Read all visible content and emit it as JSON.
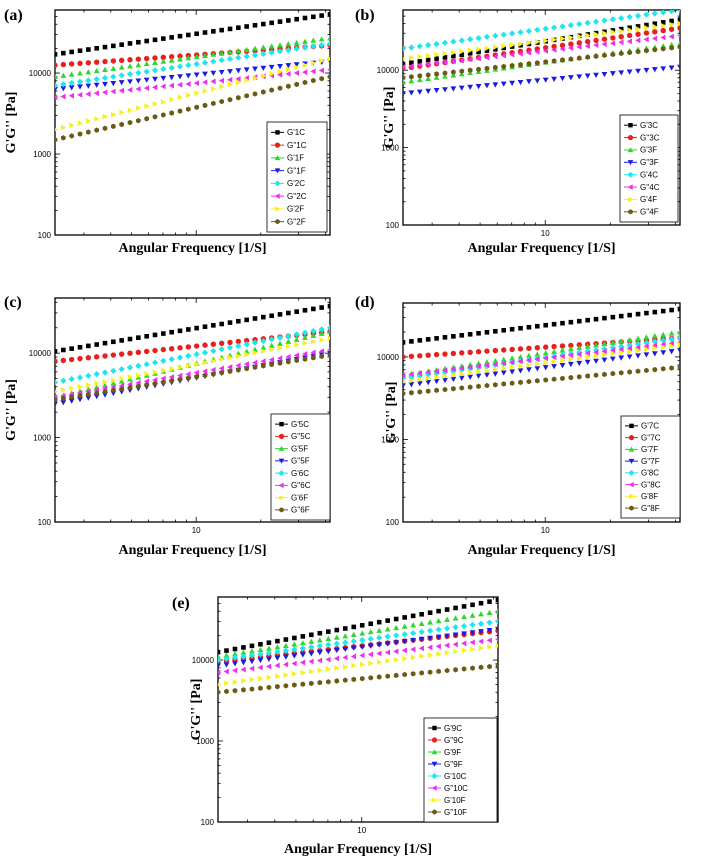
{
  "figure": {
    "colors": {
      "black": "#000000",
      "red": "#e8201c",
      "green": "#2ed62e",
      "blue": "#1a1ae0",
      "cyan": "#1ee6ee",
      "magenta": "#f02cf0",
      "yellow": "#f8f018",
      "olive": "#6a5a14"
    },
    "markers": [
      "square",
      "circle",
      "triangle-up",
      "triangle-down",
      "diamond",
      "triangle-left",
      "triangle-right",
      "hexagon"
    ]
  },
  "chart_data": [
    {
      "type": "scatter",
      "panel": "(a)",
      "xlabel": "Angular Frequency [1/S]",
      "ylabel": "G'G'' [Pa]",
      "xscale": "log",
      "yscale": "log",
      "xlim": [
        2.2,
        42
      ],
      "ylim": [
        100,
        60000
      ],
      "x_ticks": [],
      "y_ticks": [
        "100",
        "1000",
        "10000"
      ],
      "y_tick_values": [
        100,
        1000,
        10000
      ],
      "legend_position": "bottom-right",
      "series": [
        {
          "name": "G'1C",
          "color": "black",
          "marker": "square",
          "y_start": 17000,
          "y_end": 53000
        },
        {
          "name": "G''1C",
          "color": "red",
          "marker": "circle",
          "y_start": 12500,
          "y_end": 22000
        },
        {
          "name": "G'1F",
          "color": "green",
          "marker": "triangle-up",
          "y_start": 9000,
          "y_end": 27000
        },
        {
          "name": "G''1F",
          "color": "blue",
          "marker": "triangle-down",
          "y_start": 6300,
          "y_end": 14000
        },
        {
          "name": "G'2C",
          "color": "cyan",
          "marker": "diamond",
          "y_start": 7000,
          "y_end": 23000
        },
        {
          "name": "G''2C",
          "color": "magenta",
          "marker": "triangle-left",
          "y_start": 5000,
          "y_end": 11000
        },
        {
          "name": "G'2F",
          "color": "yellow",
          "marker": "triangle-right",
          "y_start": 2000,
          "y_end": 15000
        },
        {
          "name": "G''2F",
          "color": "olive",
          "marker": "hexagon",
          "y_start": 1500,
          "y_end": 9000
        }
      ]
    },
    {
      "type": "scatter",
      "panel": "(b)",
      "xlabel": "Angular Frequency [1/S]",
      "ylabel": "G'G'' [Pa]",
      "xscale": "log",
      "yscale": "log",
      "xlim": [
        2.2,
        42
      ],
      "ylim": [
        100,
        60000
      ],
      "x_ticks": [
        "10"
      ],
      "x_tick_values": [
        10
      ],
      "y_ticks": [
        "100",
        "1000",
        "10000"
      ],
      "y_tick_values": [
        100,
        1000,
        10000
      ],
      "legend_position": "bottom-right",
      "series": [
        {
          "name": "G'3C",
          "color": "black",
          "marker": "square",
          "y_start": 12000,
          "y_end": 45000
        },
        {
          "name": "G''3C",
          "color": "red",
          "marker": "circle",
          "y_start": 10500,
          "y_end": 35000
        },
        {
          "name": "G'3F",
          "color": "green",
          "marker": "triangle-up",
          "y_start": 7000,
          "y_end": 22000
        },
        {
          "name": "G''3F",
          "color": "blue",
          "marker": "triangle-down",
          "y_start": 5000,
          "y_end": 11000
        },
        {
          "name": "G'4C",
          "color": "cyan",
          "marker": "diamond",
          "y_start": 19000,
          "y_end": 60000
        },
        {
          "name": "G''4C",
          "color": "magenta",
          "marker": "triangle-left",
          "y_start": 11000,
          "y_end": 28000
        },
        {
          "name": "G'4F",
          "color": "yellow",
          "marker": "triangle-right",
          "y_start": 14000,
          "y_end": 40000
        },
        {
          "name": "G''4F",
          "color": "olive",
          "marker": "hexagon",
          "y_start": 8000,
          "y_end": 20000
        }
      ]
    },
    {
      "type": "scatter",
      "panel": "(c)",
      "xlabel": "Angular Frequency [1/S]",
      "ylabel": "G'G'' [Pa]",
      "xscale": "log",
      "yscale": "log",
      "xlim": [
        2.2,
        42
      ],
      "ylim": [
        100,
        45000
      ],
      "x_ticks": [
        "10"
      ],
      "x_tick_values": [
        10
      ],
      "y_ticks": [
        "100",
        "1000",
        "10000"
      ],
      "y_tick_values": [
        100,
        1000,
        10000
      ],
      "legend_position": "bottom-right",
      "series": [
        {
          "name": "G'5C",
          "color": "black",
          "marker": "square",
          "y_start": 10500,
          "y_end": 36000
        },
        {
          "name": "G''5C",
          "color": "red",
          "marker": "circle",
          "y_start": 8000,
          "y_end": 18000
        },
        {
          "name": "G'5F",
          "color": "green",
          "marker": "triangle-up",
          "y_start": 3000,
          "y_end": 18000
        },
        {
          "name": "G''5F",
          "color": "blue",
          "marker": "triangle-down",
          "y_start": 2500,
          "y_end": 10000
        },
        {
          "name": "G'6C",
          "color": "cyan",
          "marker": "diamond",
          "y_start": 4500,
          "y_end": 20000
        },
        {
          "name": "G''6C",
          "color": "magenta",
          "marker": "triangle-left",
          "y_start": 3000,
          "y_end": 11000
        },
        {
          "name": "G'6F",
          "color": "yellow",
          "marker": "triangle-right",
          "y_start": 3500,
          "y_end": 15000
        },
        {
          "name": "G''6F",
          "color": "olive",
          "marker": "hexagon",
          "y_start": 2800,
          "y_end": 9500
        }
      ]
    },
    {
      "type": "scatter",
      "panel": "(d)",
      "xlabel": "Angular Frequency [1/S]",
      "ylabel": "G'G'' [Pa]",
      "xscale": "log",
      "yscale": "log",
      "xlim": [
        2.2,
        42
      ],
      "ylim": [
        100,
        45000
      ],
      "x_ticks": [
        "10"
      ],
      "x_tick_values": [
        10
      ],
      "y_ticks": [
        "100",
        "1000",
        "10000"
      ],
      "y_tick_values": [
        100,
        1000,
        10000
      ],
      "legend_position": "bottom-right",
      "series": [
        {
          "name": "G'7C",
          "color": "black",
          "marker": "square",
          "y_start": 15000,
          "y_end": 38000
        },
        {
          "name": "G''7C",
          "color": "red",
          "marker": "circle",
          "y_start": 10000,
          "y_end": 17000
        },
        {
          "name": "G'7F",
          "color": "green",
          "marker": "triangle-up",
          "y_start": 6000,
          "y_end": 20000
        },
        {
          "name": "G''7F",
          "color": "blue",
          "marker": "triangle-down",
          "y_start": 4500,
          "y_end": 12000
        },
        {
          "name": "G'8C",
          "color": "cyan",
          "marker": "diamond",
          "y_start": 5500,
          "y_end": 17000
        },
        {
          "name": "G''8C",
          "color": "magenta",
          "marker": "triangle-left",
          "y_start": 6000,
          "y_end": 15000
        },
        {
          "name": "G'8F",
          "color": "yellow",
          "marker": "triangle-right",
          "y_start": 5000,
          "y_end": 14000
        },
        {
          "name": "G''8F",
          "color": "olive",
          "marker": "hexagon",
          "y_start": 3600,
          "y_end": 7500
        }
      ]
    },
    {
      "type": "scatter",
      "panel": "(e)",
      "xlabel": "Angular Frequency [1/S]",
      "ylabel": "G'G'' [Pa]",
      "xscale": "log",
      "yscale": "log",
      "xlim": [
        2.2,
        42
      ],
      "ylim": [
        100,
        60000
      ],
      "x_ticks": [
        "10"
      ],
      "x_tick_values": [
        10
      ],
      "y_ticks": [
        "100",
        "1000",
        "10000"
      ],
      "y_tick_values": [
        100,
        1000,
        10000
      ],
      "legend_position": "bottom-right",
      "series": [
        {
          "name": "G'9C",
          "color": "black",
          "marker": "square",
          "y_start": 12500,
          "y_end": 55000
        },
        {
          "name": "G''9C",
          "color": "red",
          "marker": "circle",
          "y_start": 9500,
          "y_end": 23000
        },
        {
          "name": "G'9F",
          "color": "green",
          "marker": "triangle-up",
          "y_start": 11000,
          "y_end": 40000
        },
        {
          "name": "G''9F",
          "color": "blue",
          "marker": "triangle-down",
          "y_start": 8500,
          "y_end": 24000
        },
        {
          "name": "G'10C",
          "color": "cyan",
          "marker": "diamond",
          "y_start": 10000,
          "y_end": 30000
        },
        {
          "name": "G''10C",
          "color": "magenta",
          "marker": "triangle-left",
          "y_start": 7000,
          "y_end": 18000
        },
        {
          "name": "G'10F",
          "color": "yellow",
          "marker": "triangle-right",
          "y_start": 5000,
          "y_end": 15000
        },
        {
          "name": "G''10F",
          "color": "olive",
          "marker": "hexagon",
          "y_start": 4000,
          "y_end": 8500
        }
      ]
    }
  ]
}
